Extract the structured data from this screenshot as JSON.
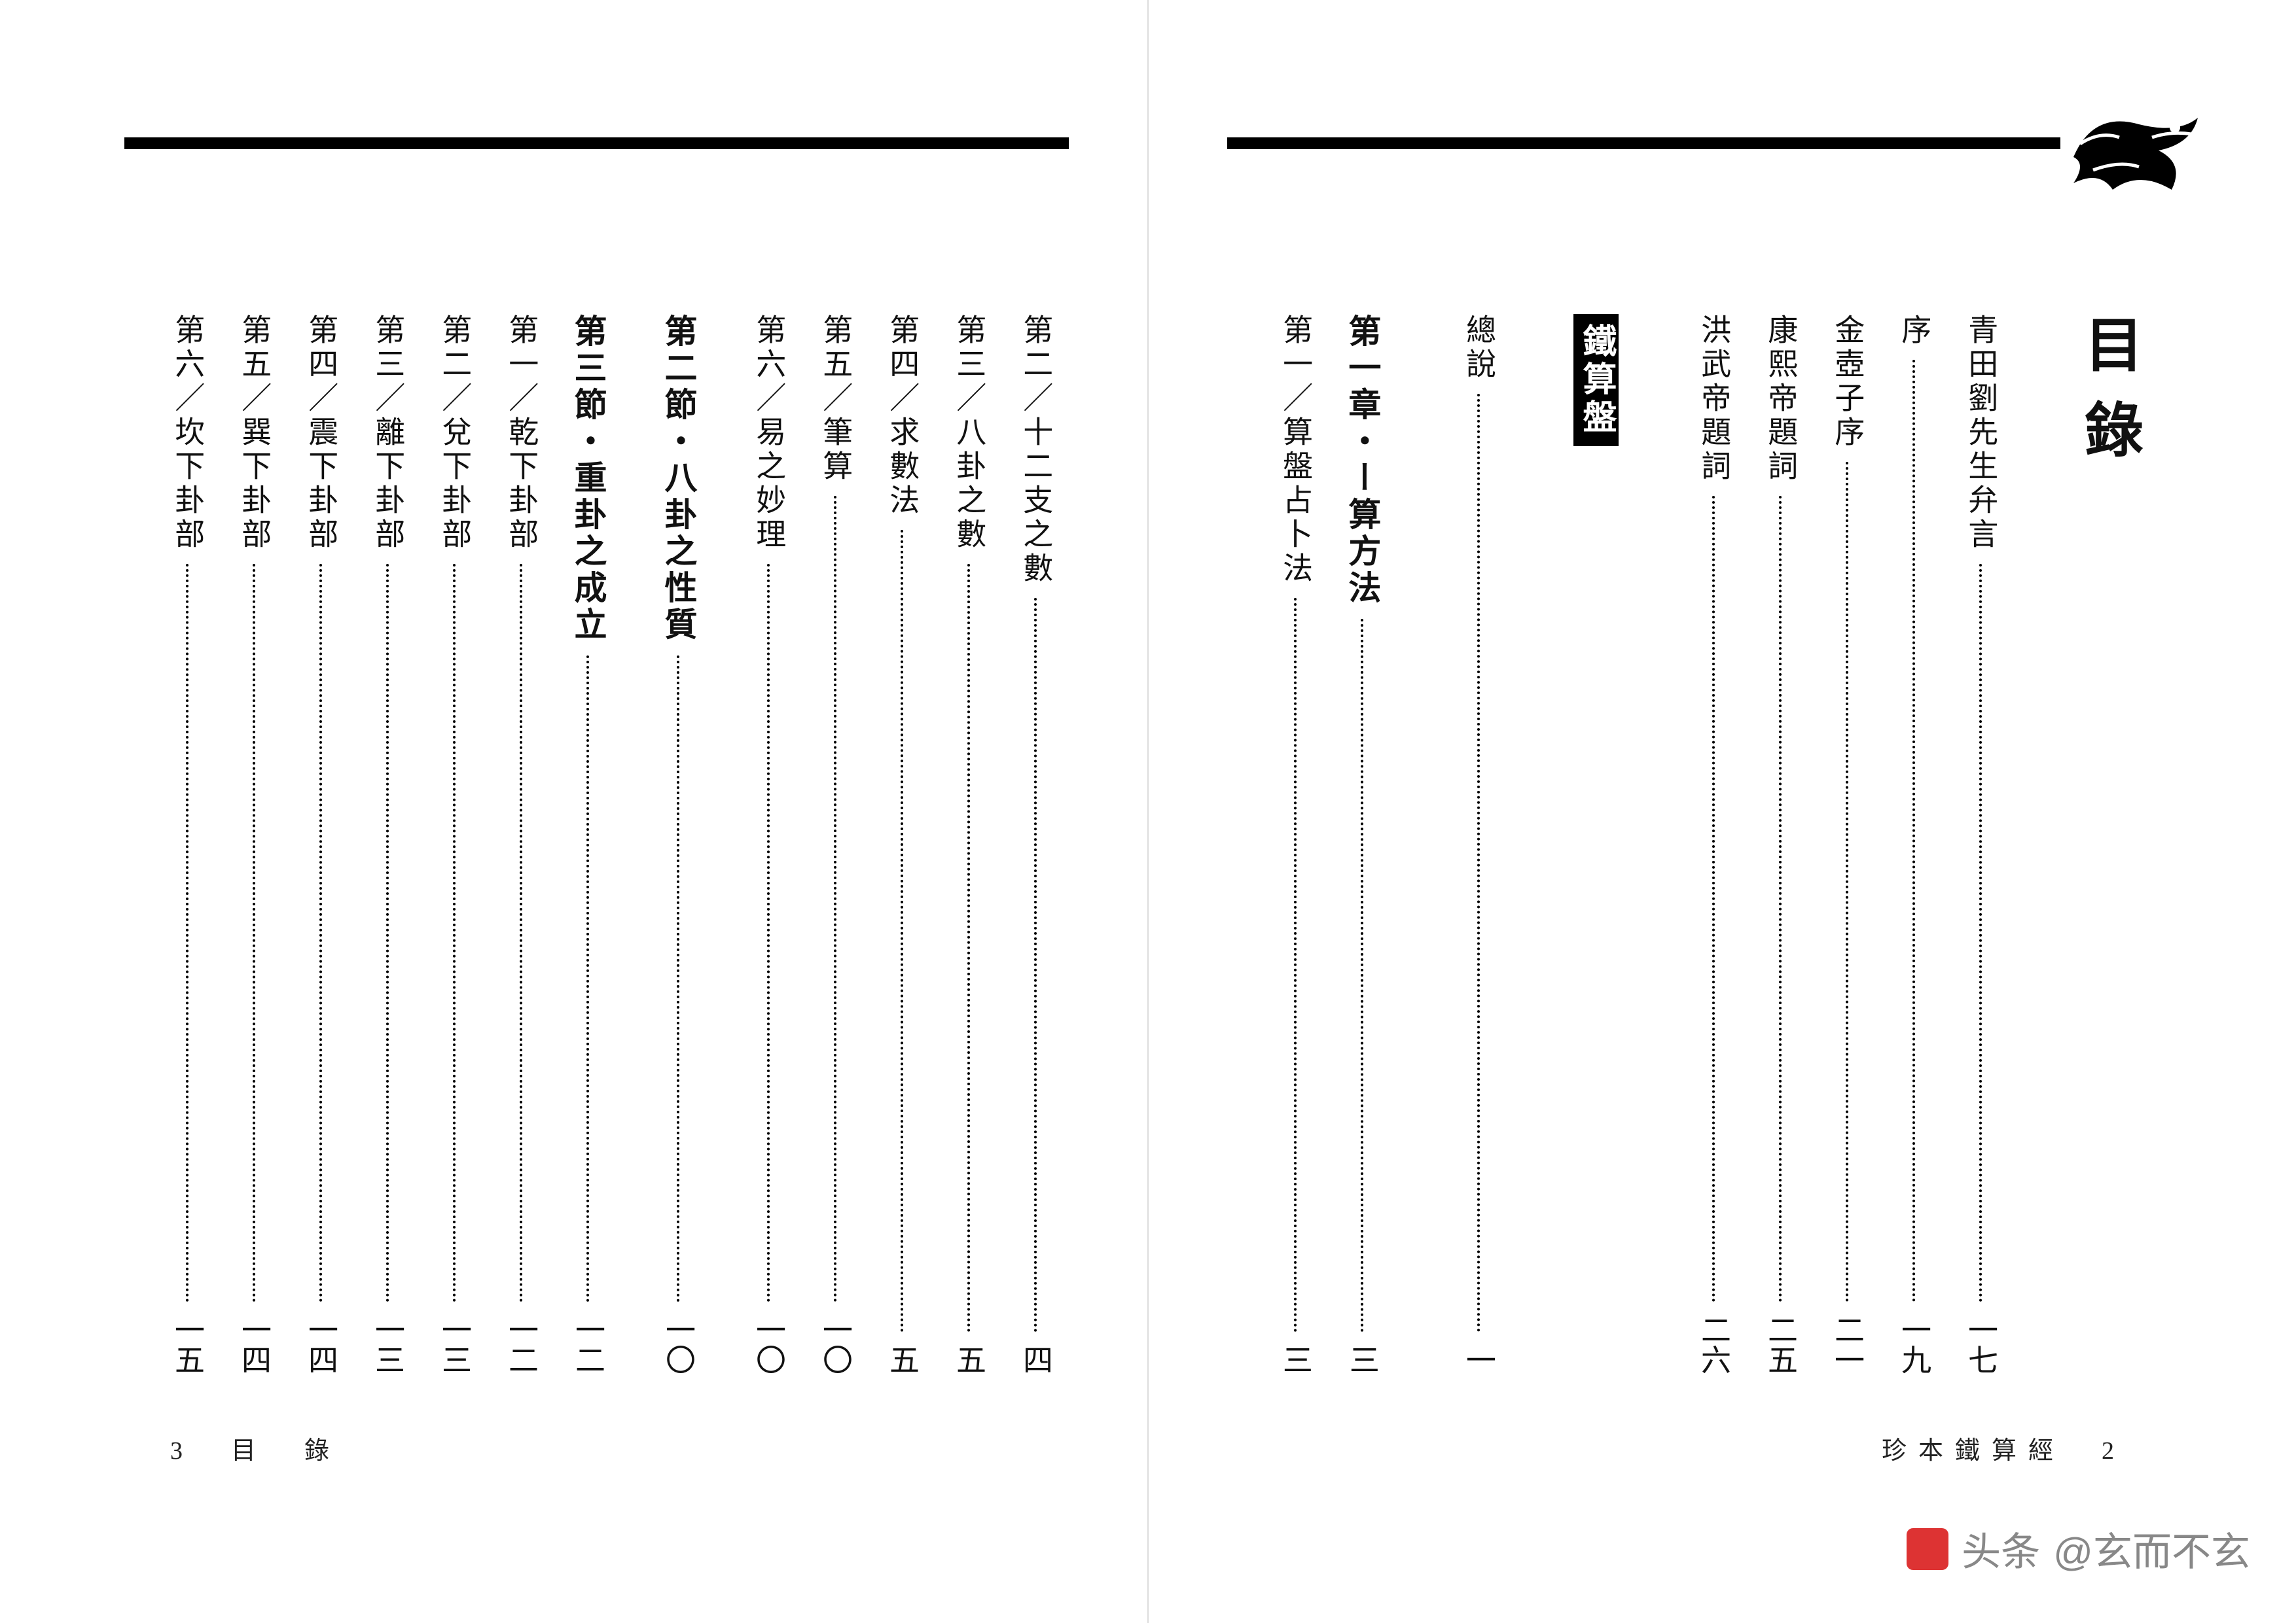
{
  "title": "目錄",
  "box_label": "鐵算盤",
  "right_page": {
    "footer": "珍本鐵算經　2",
    "entries": [
      {
        "label": "青田劉先生弁言",
        "page": "一七",
        "cls": ""
      },
      {
        "label": "序",
        "page": "一九",
        "cls": ""
      },
      {
        "label": "金壺子序",
        "page": "二一",
        "cls": ""
      },
      {
        "label": "康熙帝題詞",
        "page": "二五",
        "cls": ""
      },
      {
        "label": "洪武帝題詞",
        "page": "二六",
        "cls": ""
      },
      {
        "type": "spacer"
      },
      {
        "type": "box"
      },
      {
        "type": "spacer"
      },
      {
        "label": "總說",
        "page": "一",
        "cls": ""
      },
      {
        "type": "spacer"
      },
      {
        "label": "第一章・ー算方法",
        "page": "三",
        "cls": "section"
      },
      {
        "label": "第一／算盤占卜法",
        "page": "三",
        "cls": ""
      }
    ]
  },
  "left_page": {
    "footer": "3　目　錄",
    "entries": [
      {
        "label": "第二／十二支之數",
        "page": "四",
        "cls": ""
      },
      {
        "label": "第三／八卦之數",
        "page": "五",
        "cls": ""
      },
      {
        "label": "第四／求數法",
        "page": "五",
        "cls": ""
      },
      {
        "label": "第五／筆算",
        "page": "一〇",
        "cls": ""
      },
      {
        "label": "第六／易之妙理",
        "page": "一〇",
        "cls": ""
      },
      {
        "type": "spacer"
      },
      {
        "label": "第二節・八卦之性質",
        "page": "一〇",
        "cls": "section"
      },
      {
        "type": "spacer"
      },
      {
        "label": "第三節・重卦之成立",
        "page": "一二",
        "cls": "section"
      },
      {
        "label": "第一／乾下卦部",
        "page": "一二",
        "cls": ""
      },
      {
        "label": "第二／兌下卦部",
        "page": "一三",
        "cls": ""
      },
      {
        "label": "第三／離下卦部",
        "page": "一三",
        "cls": ""
      },
      {
        "label": "第四／震下卦部",
        "page": "一四",
        "cls": ""
      },
      {
        "label": "第五／巽下卦部",
        "page": "一四",
        "cls": ""
      },
      {
        "label": "第六／坎下卦部",
        "page": "一五",
        "cls": ""
      }
    ]
  },
  "watermark": {
    "site": "头条",
    "handle": "@玄而不玄"
  }
}
